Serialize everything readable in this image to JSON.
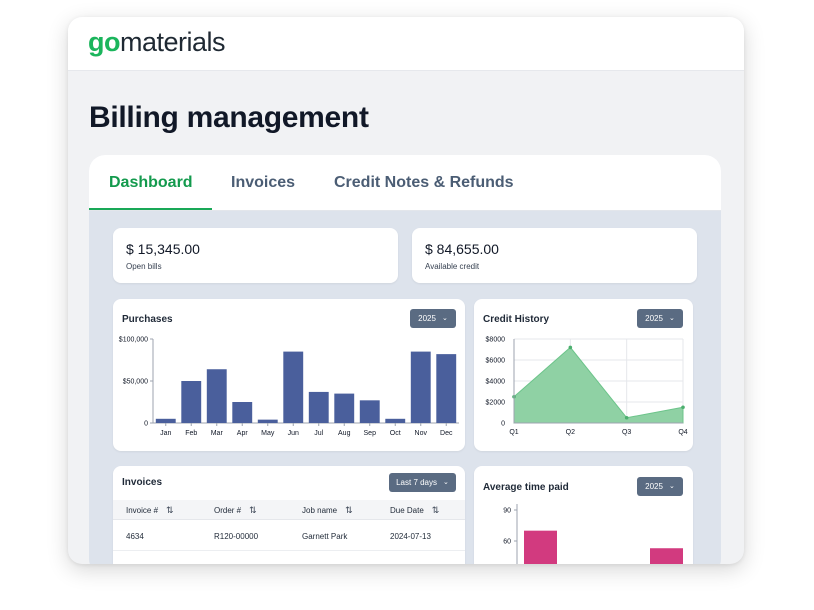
{
  "brand": {
    "logo_prefix": "go",
    "logo_suffix": "materials",
    "accent": "#1bb55c"
  },
  "page": {
    "title": "Billing management"
  },
  "tabs": [
    {
      "label": "Dashboard",
      "active": true
    },
    {
      "label": "Invoices",
      "active": false
    },
    {
      "label": "Credit Notes & Refunds",
      "active": false
    }
  ],
  "stats": {
    "open_bills": {
      "value": "$ 15,345.00",
      "label": "Open bills"
    },
    "available_credit": {
      "value": "$ 84,655.00",
      "label": "Available credit"
    }
  },
  "purchases": {
    "title": "Purchases",
    "year": "2025",
    "chart_data": {
      "type": "bar",
      "categories": [
        "Jan",
        "Feb",
        "Mar",
        "Apr",
        "May",
        "Jun",
        "Jul",
        "Aug",
        "Sep",
        "Oct",
        "Nov",
        "Dec"
      ],
      "values": [
        5000,
        50000,
        64000,
        25000,
        4000,
        85000,
        37000,
        35000,
        27000,
        5000,
        85000,
        82000
      ],
      "ylim": [
        0,
        100000
      ],
      "yticks": [
        "$100,000",
        "$50,000",
        "0"
      ],
      "color": "#4a5f9c"
    }
  },
  "credit_history": {
    "title": "Credit History",
    "year": "2025",
    "chart_data": {
      "type": "area",
      "categories": [
        "Q1",
        "Q2",
        "Q3",
        "Q4"
      ],
      "values": [
        2500,
        7200,
        500,
        1500
      ],
      "ylim": [
        0,
        8000
      ],
      "yticks": [
        "$8000",
        "$6000",
        "$4000",
        "$2000",
        "0"
      ],
      "color": "#8fd1a4"
    }
  },
  "invoices": {
    "title": "Invoices",
    "range": "Last 7 days",
    "columns": [
      "Invoice #",
      "Order #",
      "Job name",
      "Due Date"
    ],
    "rows": [
      [
        "4634",
        "R120-00000",
        "Garnett Park",
        "2024-07-13"
      ]
    ]
  },
  "avg_time_paid": {
    "title": "Average time paid",
    "year": "2025",
    "chart_data": {
      "type": "bar",
      "categories": [
        "",
        ""
      ],
      "values": [
        70,
        53
      ],
      "yticks": [
        "90",
        "60"
      ],
      "color": "#d23a7f"
    }
  }
}
